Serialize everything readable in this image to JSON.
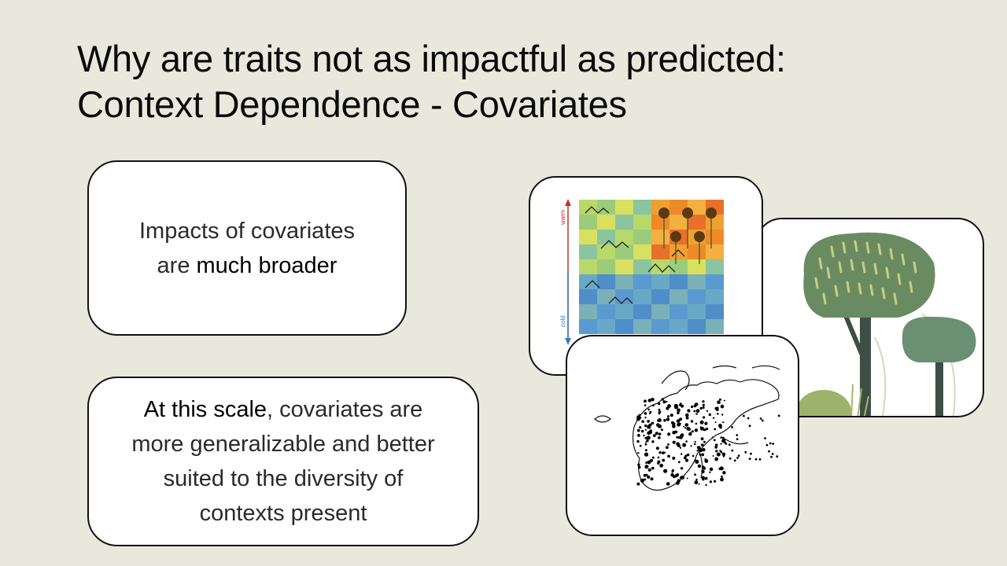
{
  "slide": {
    "title_line1": "Why are traits not as impactful as predicted:",
    "title_line2": "Context Dependence - Covariates"
  },
  "box_top": {
    "line1": "Impacts of covariates",
    "line2_prefix": "are ",
    "line2_emphasis": "much broader"
  },
  "box_bottom": {
    "emphasis": "At this scale",
    "line1_rest": ", covariates are",
    "line2": "more generalizable and better",
    "line3": "suited to the diversity of",
    "line4": "contexts present"
  },
  "climate_image": {
    "warm_label": "warm",
    "cold_label": "cold",
    "colors": {
      "warm": "#c0303a",
      "cold": "#3a7dc0"
    }
  },
  "icons": [
    "trees-illustration",
    "climate-gradient-illustration",
    "europe-map-illustration"
  ]
}
